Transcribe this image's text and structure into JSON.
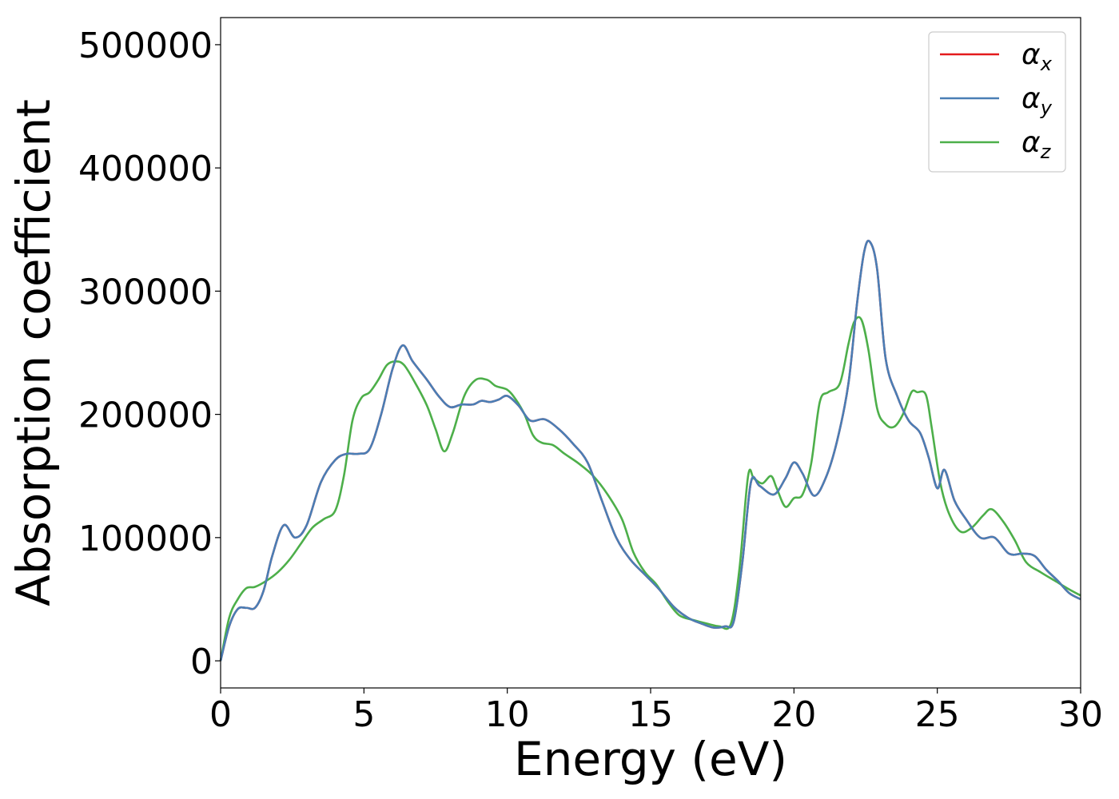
{
  "chart_data": {
    "type": "line",
    "xlabel": "Energy (eV)",
    "ylabel": "Absorption coefficient",
    "xlim": [
      0,
      30
    ],
    "ylim": [
      -22000,
      522000
    ],
    "xticks": [
      0,
      5,
      10,
      15,
      20,
      25,
      30
    ],
    "yticks": [
      0,
      100000,
      200000,
      300000,
      400000,
      500000
    ],
    "grid": false,
    "legend_position": "top-right",
    "series": [
      {
        "name": "α",
        "sub": "x",
        "color": "#e41a1c",
        "x": [
          0,
          0.3,
          0.6,
          0.9,
          1.2,
          1.5,
          1.8,
          2.2,
          2.6,
          3.0,
          3.5,
          4.0,
          4.4,
          4.8,
          5.2,
          5.6,
          6.0,
          6.35,
          6.7,
          7.2,
          7.6,
          8.0,
          8.4,
          8.8,
          9.1,
          9.4,
          9.7,
          10.0,
          10.4,
          10.8,
          11.3,
          11.8,
          12.3,
          12.8,
          13.3,
          13.8,
          14.3,
          14.8,
          15.3,
          15.8,
          16.3,
          16.8,
          17.2,
          17.6,
          17.9,
          18.2,
          18.5,
          18.8,
          19.3,
          19.7,
          20.0,
          20.3,
          20.7,
          21.1,
          21.5,
          21.9,
          22.2,
          22.45,
          22.65,
          22.9,
          23.2,
          23.6,
          24.0,
          24.4,
          24.7,
          25.0,
          25.25,
          25.6,
          26.0,
          26.5,
          27.0,
          27.5,
          28.0,
          28.4,
          28.8,
          29.2,
          29.6,
          30.0
        ],
        "y": [
          0,
          28000,
          42000,
          43000,
          43000,
          57000,
          85000,
          110000,
          100000,
          110000,
          145000,
          163000,
          168000,
          168000,
          172000,
          200000,
          237000,
          256000,
          243000,
          228000,
          215000,
          206000,
          208000,
          208000,
          211000,
          210000,
          212000,
          215000,
          207000,
          195000,
          196000,
          188000,
          176000,
          161000,
          130000,
          100000,
          82000,
          70000,
          58000,
          44000,
          35000,
          30000,
          27000,
          28000,
          32000,
          80000,
          145000,
          142000,
          135000,
          148000,
          161000,
          152000,
          134000,
          148000,
          178000,
          225000,
          290000,
          332000,
          340000,
          318000,
          245000,
          215000,
          195000,
          185000,
          165000,
          140000,
          155000,
          130000,
          115000,
          100000,
          100000,
          87000,
          87000,
          85000,
          74000,
          65000,
          55000,
          50000
        ]
      },
      {
        "name": "α",
        "sub": "y",
        "color": "#4a7eb5",
        "x": [
          0,
          0.3,
          0.6,
          0.9,
          1.2,
          1.5,
          1.8,
          2.2,
          2.6,
          3.0,
          3.5,
          4.0,
          4.4,
          4.8,
          5.2,
          5.6,
          6.0,
          6.35,
          6.7,
          7.2,
          7.6,
          8.0,
          8.4,
          8.8,
          9.1,
          9.4,
          9.7,
          10.0,
          10.4,
          10.8,
          11.3,
          11.8,
          12.3,
          12.8,
          13.3,
          13.8,
          14.3,
          14.8,
          15.3,
          15.8,
          16.3,
          16.8,
          17.2,
          17.6,
          17.9,
          18.2,
          18.5,
          18.8,
          19.3,
          19.7,
          20.0,
          20.3,
          20.7,
          21.1,
          21.5,
          21.9,
          22.2,
          22.45,
          22.65,
          22.9,
          23.2,
          23.6,
          24.0,
          24.4,
          24.7,
          25.0,
          25.25,
          25.6,
          26.0,
          26.5,
          27.0,
          27.5,
          28.0,
          28.4,
          28.8,
          29.2,
          29.6,
          30.0
        ],
        "y": [
          0,
          28000,
          42000,
          43000,
          43000,
          57000,
          85000,
          110000,
          100000,
          110000,
          145000,
          163000,
          168000,
          168000,
          172000,
          200000,
          237000,
          256000,
          243000,
          228000,
          215000,
          206000,
          208000,
          208000,
          211000,
          210000,
          212000,
          215000,
          207000,
          195000,
          196000,
          188000,
          176000,
          161000,
          130000,
          100000,
          82000,
          70000,
          58000,
          44000,
          35000,
          30000,
          27000,
          28000,
          32000,
          80000,
          145000,
          142000,
          135000,
          148000,
          161000,
          152000,
          134000,
          148000,
          178000,
          225000,
          290000,
          332000,
          340000,
          318000,
          245000,
          215000,
          195000,
          185000,
          165000,
          140000,
          155000,
          130000,
          115000,
          100000,
          100000,
          87000,
          87000,
          85000,
          74000,
          65000,
          55000,
          50000
        ]
      },
      {
        "name": "α",
        "sub": "z",
        "color": "#4daf4a",
        "x": [
          0,
          0.3,
          0.6,
          0.9,
          1.2,
          1.6,
          2.0,
          2.4,
          2.8,
          3.2,
          3.6,
          4.0,
          4.3,
          4.6,
          4.9,
          5.2,
          5.5,
          5.8,
          6.1,
          6.4,
          6.8,
          7.2,
          7.5,
          7.8,
          8.1,
          8.5,
          8.9,
          9.3,
          9.6,
          10.0,
          10.3,
          10.6,
          10.9,
          11.2,
          11.6,
          12.0,
          12.5,
          13.0,
          13.5,
          14.0,
          14.4,
          14.8,
          15.2,
          15.6,
          16.0,
          16.5,
          17.0,
          17.4,
          17.8,
          18.1,
          18.4,
          18.6,
          18.9,
          19.2,
          19.4,
          19.7,
          20.0,
          20.3,
          20.6,
          20.9,
          21.2,
          21.6,
          21.9,
          22.1,
          22.35,
          22.6,
          22.9,
          23.2,
          23.5,
          23.8,
          24.1,
          24.3,
          24.6,
          24.8,
          25.1,
          25.4,
          25.8,
          26.2,
          26.6,
          26.9,
          27.3,
          27.7,
          28.1,
          28.6,
          29.1,
          29.6,
          30.0
        ],
        "y": [
          0,
          35000,
          50000,
          59000,
          60000,
          65000,
          72000,
          82000,
          95000,
          108000,
          115000,
          122000,
          150000,
          195000,
          213000,
          218000,
          228000,
          240000,
          243000,
          240000,
          225000,
          207000,
          188000,
          170000,
          185000,
          215000,
          228000,
          228000,
          223000,
          220000,
          212000,
          200000,
          183000,
          177000,
          175000,
          168000,
          160000,
          150000,
          135000,
          115000,
          88000,
          72000,
          62000,
          48000,
          37000,
          33000,
          30000,
          28000,
          30000,
          75000,
          150000,
          148000,
          144000,
          150000,
          140000,
          125000,
          132000,
          135000,
          160000,
          210000,
          218000,
          225000,
          257000,
          275000,
          277000,
          252000,
          205000,
          192000,
          190000,
          200000,
          218000,
          218000,
          216000,
          190000,
          145000,
          120000,
          105000,
          108000,
          118000,
          123000,
          113000,
          98000,
          80000,
          72000,
          65000,
          58000,
          53000
        ]
      }
    ]
  }
}
